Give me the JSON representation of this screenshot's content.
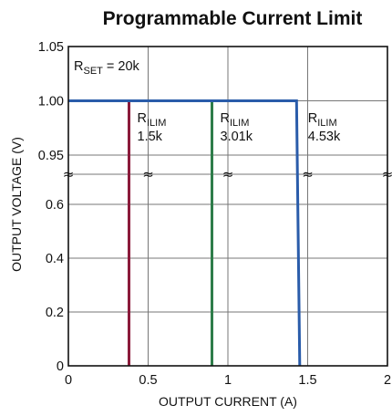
{
  "chart_data": {
    "type": "line",
    "title": "Programmable Current Limit",
    "xlabel": "OUTPUT CURRENT (A)",
    "ylabel": "OUTPUT VOLTAGE (V)",
    "xlim": [
      0,
      2
    ],
    "x_ticks": [
      0,
      0.5,
      1,
      1.5,
      2
    ],
    "x_tick_labels": [
      "0",
      "0.5",
      "1",
      "1.5",
      "2"
    ],
    "y_ticks_lower": [
      0,
      0.2,
      0.4,
      0.6
    ],
    "y_tick_labels_lower": [
      "0",
      "0.2",
      "0.4",
      "0.6"
    ],
    "y_ticks_upper": [
      0.95,
      1.0,
      1.05
    ],
    "y_tick_labels_upper": [
      "0.95",
      "1.00",
      "1.05"
    ],
    "y_axis_break": "between 0.6 and 0.95",
    "break_symbol": "≈",
    "grid": true,
    "annotation": {
      "main": "R",
      "sub": "SET",
      "rest": " = 20k"
    },
    "series": [
      {
        "label_main": "R",
        "label_sub": "ILIM",
        "label_value": "1.5k",
        "color": "#8b1a3a",
        "x": [
          0,
          0.38,
          0.38
        ],
        "y": [
          1.0,
          1.0,
          0
        ]
      },
      {
        "label_main": "R",
        "label_sub": "ILIM",
        "label_value": "3.01k",
        "color": "#2e7d4a",
        "x": [
          0,
          0.9,
          0.9
        ],
        "y": [
          1.0,
          1.0,
          0
        ]
      },
      {
        "label_main": "R",
        "label_sub": "ILIM",
        "label_value": "4.53k",
        "color": "#2a5caa",
        "x": [
          0,
          1.43,
          1.45
        ],
        "y": [
          1.0,
          1.0,
          0
        ]
      }
    ]
  }
}
